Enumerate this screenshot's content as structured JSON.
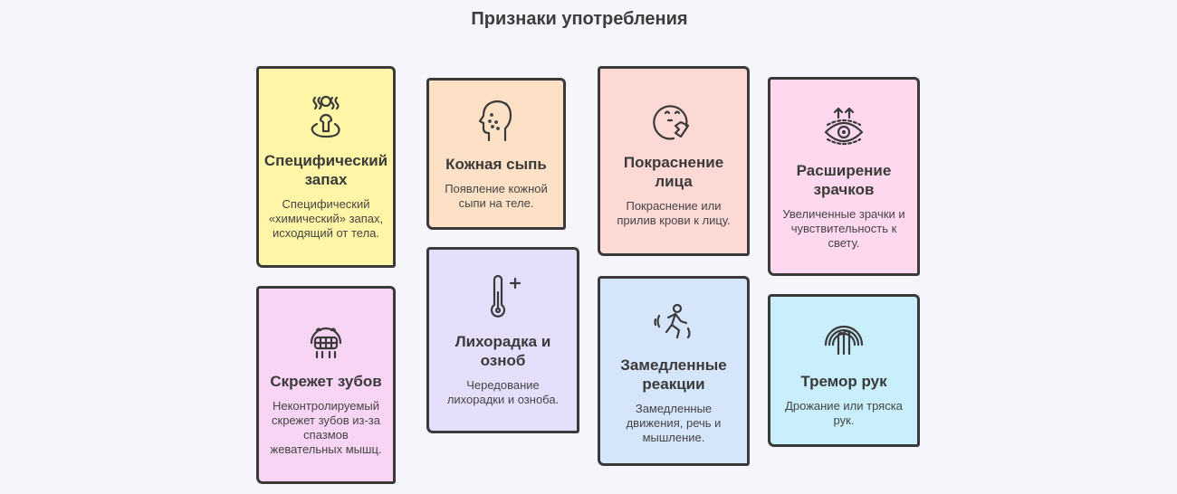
{
  "title": "Признаки употребления",
  "cards": [
    {
      "title": "Специфический запах",
      "text": "Специфический «химический» запах, исходящий от тела.",
      "icon": "person-odor-icon",
      "color": "#fff5a6"
    },
    {
      "title": "Кожная сыпь",
      "text": "Появление кожной сыпи на теле.",
      "icon": "head-rash-icon",
      "color": "#fde1c6"
    },
    {
      "title": "Покраснение лица",
      "text": "Покраснение или прилив крови к лицу.",
      "icon": "flushed-face-icon",
      "color": "#fdd9d6"
    },
    {
      "title": "Расширение зрачков",
      "text": "Увеличенные зрачки и чувствительность к свету.",
      "icon": "dilated-eye-icon",
      "color": "#fdd8ee"
    },
    {
      "title": "Скрежет зубов",
      "text": "Неконтролируемый скрежет зубов из-за спазмов жевательных мышц.",
      "icon": "grinding-teeth-icon",
      "color": "#f8d5f5"
    },
    {
      "title": "Лихорадка и озноб",
      "text": "Чередование лихорадки и озноба.",
      "icon": "thermometer-icon",
      "color": "#e6dffc"
    },
    {
      "title": "Замедленные реакции",
      "text": "Замедленные движения, речь и мышление.",
      "icon": "running-person-icon",
      "color": "#d5e6fb"
    },
    {
      "title": "Тремор рук",
      "text": "Дрожание или тряска рук.",
      "icon": "trembling-hand-icon",
      "color": "#c8effb"
    }
  ]
}
